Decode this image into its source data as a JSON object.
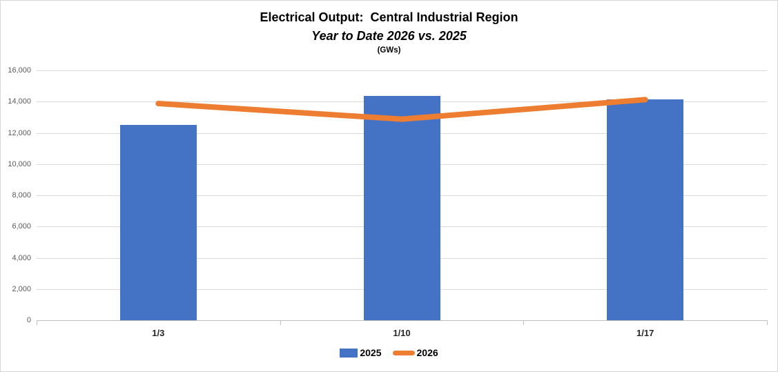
{
  "chart_data": {
    "type": "bar+line combo",
    "title": "Electrical Output:  Central Industrial Region",
    "subtitle": "Year to Date 2026 vs. 2025",
    "units_label": "(GWs)",
    "xlabel": "",
    "ylabel": "",
    "categories": [
      "1/3",
      "1/10",
      "1/17"
    ],
    "series": [
      {
        "name": "2025",
        "type": "bar",
        "color": "#4472C4",
        "values": [
          12550,
          14400,
          14150
        ]
      },
      {
        "name": "2026",
        "type": "line",
        "color": "#ED7D31",
        "values": [
          13900,
          12900,
          14150
        ]
      }
    ],
    "ylim": [
      0,
      16000
    ],
    "ytick_step": 2000,
    "ytick_labels": [
      "0",
      "2,000",
      "4,000",
      "6,000",
      "8,000",
      "10,000",
      "12,000",
      "14,000",
      "16,000"
    ],
    "grid": true,
    "legend_position": "bottom",
    "colors": {
      "bar_2025": "#4472C4",
      "line_2026": "#ED7D31",
      "gridline": "#D9D9D9",
      "axis_line": "#BFBFBF",
      "y_tick_label_text": "#595959",
      "x_tick_label_text": "#262626",
      "title_text": "#000000",
      "background": "#FFFFFF"
    }
  }
}
